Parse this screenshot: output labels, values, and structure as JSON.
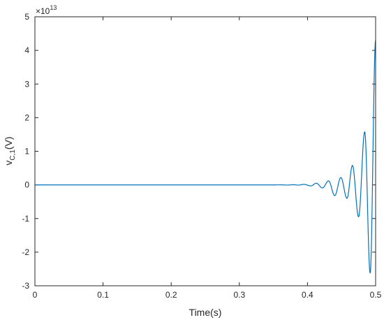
{
  "chart_data": {
    "type": "line",
    "xlabel": "Time(s)",
    "ylabel": "v",
    "ylabel_subscript": "C,1",
    "ylabel_suffix": "(V)",
    "y_multiplier_base": "×10",
    "y_multiplier_exponent": "13",
    "xlim": [
      0,
      0.5
    ],
    "ylim": [
      -3,
      5
    ],
    "xticks": [
      0,
      0.1,
      0.2,
      0.3,
      0.4,
      0.5
    ],
    "xtick_labels": [
      "0",
      "0.1",
      "0.2",
      "0.3",
      "0.4",
      "0.5"
    ],
    "yticks": [
      -3,
      -2,
      -1,
      0,
      1,
      2,
      3,
      4,
      5
    ],
    "ytick_labels": [
      "-3",
      "-2",
      "-1",
      "0",
      "1",
      "2",
      "3",
      "4",
      "5"
    ],
    "grid": false,
    "legend": "none",
    "series": [
      {
        "color": "#0072BD",
        "x": [
          0,
          0.35,
          0.36,
          0.37,
          0.38,
          0.386,
          0.395,
          0.405,
          0.413,
          0.422,
          0.431,
          0.44,
          0.449,
          0.458,
          0.466,
          0.475,
          0.484,
          0.492,
          0.5
        ],
        "y": [
          0,
          0,
          0.002,
          -0.004,
          0.005,
          -0.007,
          0.015,
          -0.03,
          0.05,
          -0.09,
          0.12,
          -0.32,
          0.22,
          -0.4,
          0.58,
          -0.95,
          1.58,
          -2.62,
          4.3
        ]
      }
    ]
  },
  "colors": {
    "line": "#0072BD",
    "axis": "#262626",
    "background": "#ffffff"
  }
}
